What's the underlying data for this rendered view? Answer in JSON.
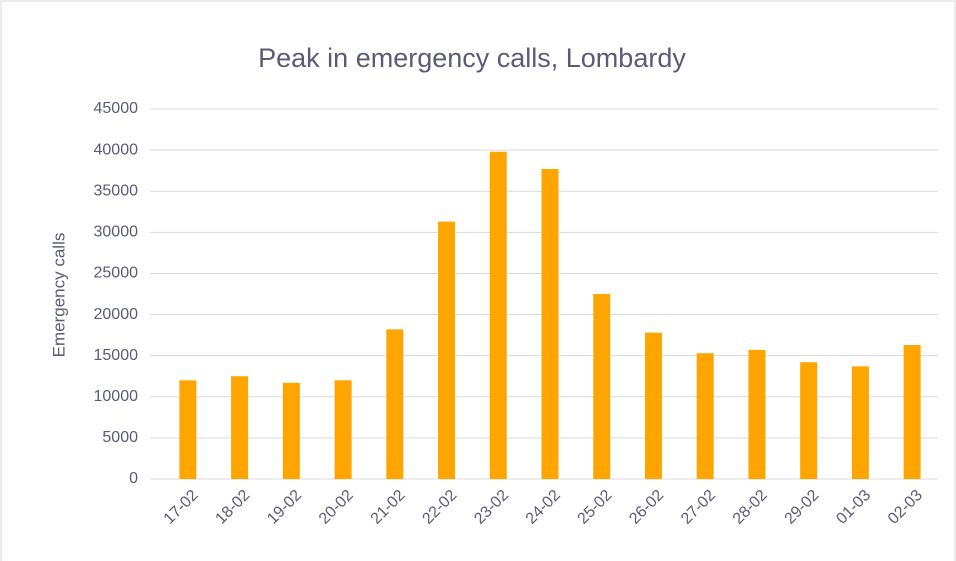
{
  "chart_data": {
    "type": "bar",
    "title": "Peak in emergency calls, Lombardy",
    "y_label": "Emergency calls",
    "categories": [
      "17-02",
      "18-02",
      "19-02",
      "20-02",
      "21-02",
      "22-02",
      "23-02",
      "24-02",
      "25-02",
      "26-02",
      "27-02",
      "28-02",
      "29-02",
      "01-03",
      "02-03"
    ],
    "values": [
      12000,
      12500,
      11700,
      12000,
      18200,
      31300,
      39800,
      37700,
      22500,
      17800,
      15300,
      15700,
      14200,
      13700,
      16300
    ],
    "color": "#ffa500",
    "ylim": [
      0,
      45000
    ],
    "yticks": [
      0,
      5000,
      10000,
      15000,
      20000,
      25000,
      30000,
      35000,
      40000,
      45000
    ],
    "grid": true
  }
}
